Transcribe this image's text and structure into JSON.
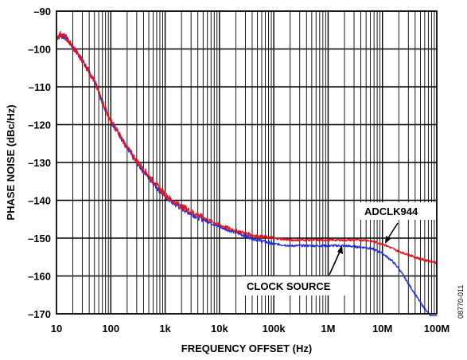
{
  "chart_data": {
    "type": "line",
    "xlabel": "FREQUENCY OFFSET (Hz)",
    "ylabel": "PHASE NOISE (dBc/Hz)",
    "x_scale": "log",
    "xlim": [
      10,
      100000000
    ],
    "ylim": [
      -170,
      -90
    ],
    "grid": true,
    "x_ticks": [
      {
        "value": 10,
        "label": "10"
      },
      {
        "value": 100,
        "label": "100"
      },
      {
        "value": 1000,
        "label": "1k"
      },
      {
        "value": 10000,
        "label": "10k"
      },
      {
        "value": 100000,
        "label": "100k"
      },
      {
        "value": 1000000,
        "label": "1M"
      },
      {
        "value": 10000000,
        "label": "10M"
      },
      {
        "value": 100000000,
        "label": "100M"
      }
    ],
    "y_ticks": [
      {
        "value": -90,
        "label": "–90"
      },
      {
        "value": -100,
        "label": "–100"
      },
      {
        "value": -110,
        "label": "–110"
      },
      {
        "value": -120,
        "label": "–120"
      },
      {
        "value": -130,
        "label": "–130"
      },
      {
        "value": -140,
        "label": "–140"
      },
      {
        "value": -150,
        "label": "–150"
      },
      {
        "value": -160,
        "label": "–160"
      },
      {
        "value": -170,
        "label": "–170"
      }
    ],
    "series": [
      {
        "name": "ADCLK944",
        "color": "#e8141b",
        "x": [
          10,
          12,
          15,
          20,
          30,
          50,
          70,
          100,
          150,
          200,
          300,
          500,
          700,
          1000,
          1500,
          2000,
          3000,
          5000,
          7000,
          10000,
          20000,
          50000,
          100000,
          200000,
          500000,
          1000000,
          2000000,
          5000000,
          10000000,
          20000000,
          50000000,
          100000000
        ],
        "y": [
          -97,
          -96,
          -97,
          -99.5,
          -103,
          -108.5,
          -114,
          -119,
          -123,
          -126,
          -129.5,
          -133.5,
          -136,
          -138.5,
          -140.5,
          -141.5,
          -143,
          -144.5,
          -145.5,
          -146.5,
          -148,
          -149.5,
          -150,
          -150.5,
          -150.5,
          -150.5,
          -150.5,
          -150.5,
          -151.5,
          -153.5,
          -155.5,
          -156.5
        ]
      },
      {
        "name": "CLOCK SOURCE",
        "color": "#1f2ee0",
        "x": [
          10,
          12,
          15,
          20,
          30,
          50,
          70,
          100,
          150,
          200,
          300,
          500,
          700,
          1000,
          1500,
          2000,
          3000,
          5000,
          7000,
          10000,
          20000,
          50000,
          100000,
          200000,
          500000,
          1000000,
          2000000,
          5000000,
          7000000,
          10000000,
          15000000,
          20000000,
          30000000,
          50000000,
          70000000,
          100000000
        ],
        "y": [
          -97,
          -96.5,
          -97,
          -99.5,
          -103,
          -108.5,
          -114,
          -119,
          -123,
          -126.5,
          -130,
          -134,
          -136.5,
          -139,
          -141,
          -142,
          -143.5,
          -145,
          -146,
          -147,
          -148.5,
          -150.5,
          -151.5,
          -152,
          -152,
          -152,
          -152,
          -152.5,
          -153,
          -154,
          -156,
          -158,
          -162,
          -167,
          -170,
          -171
        ]
      }
    ],
    "annotations": [
      {
        "text": "ADCLK944",
        "series": "ADCLK944"
      },
      {
        "text": "CLOCK SOURCE",
        "series": "CLOCK SOURCE"
      }
    ],
    "figure_id": "08770-011"
  }
}
